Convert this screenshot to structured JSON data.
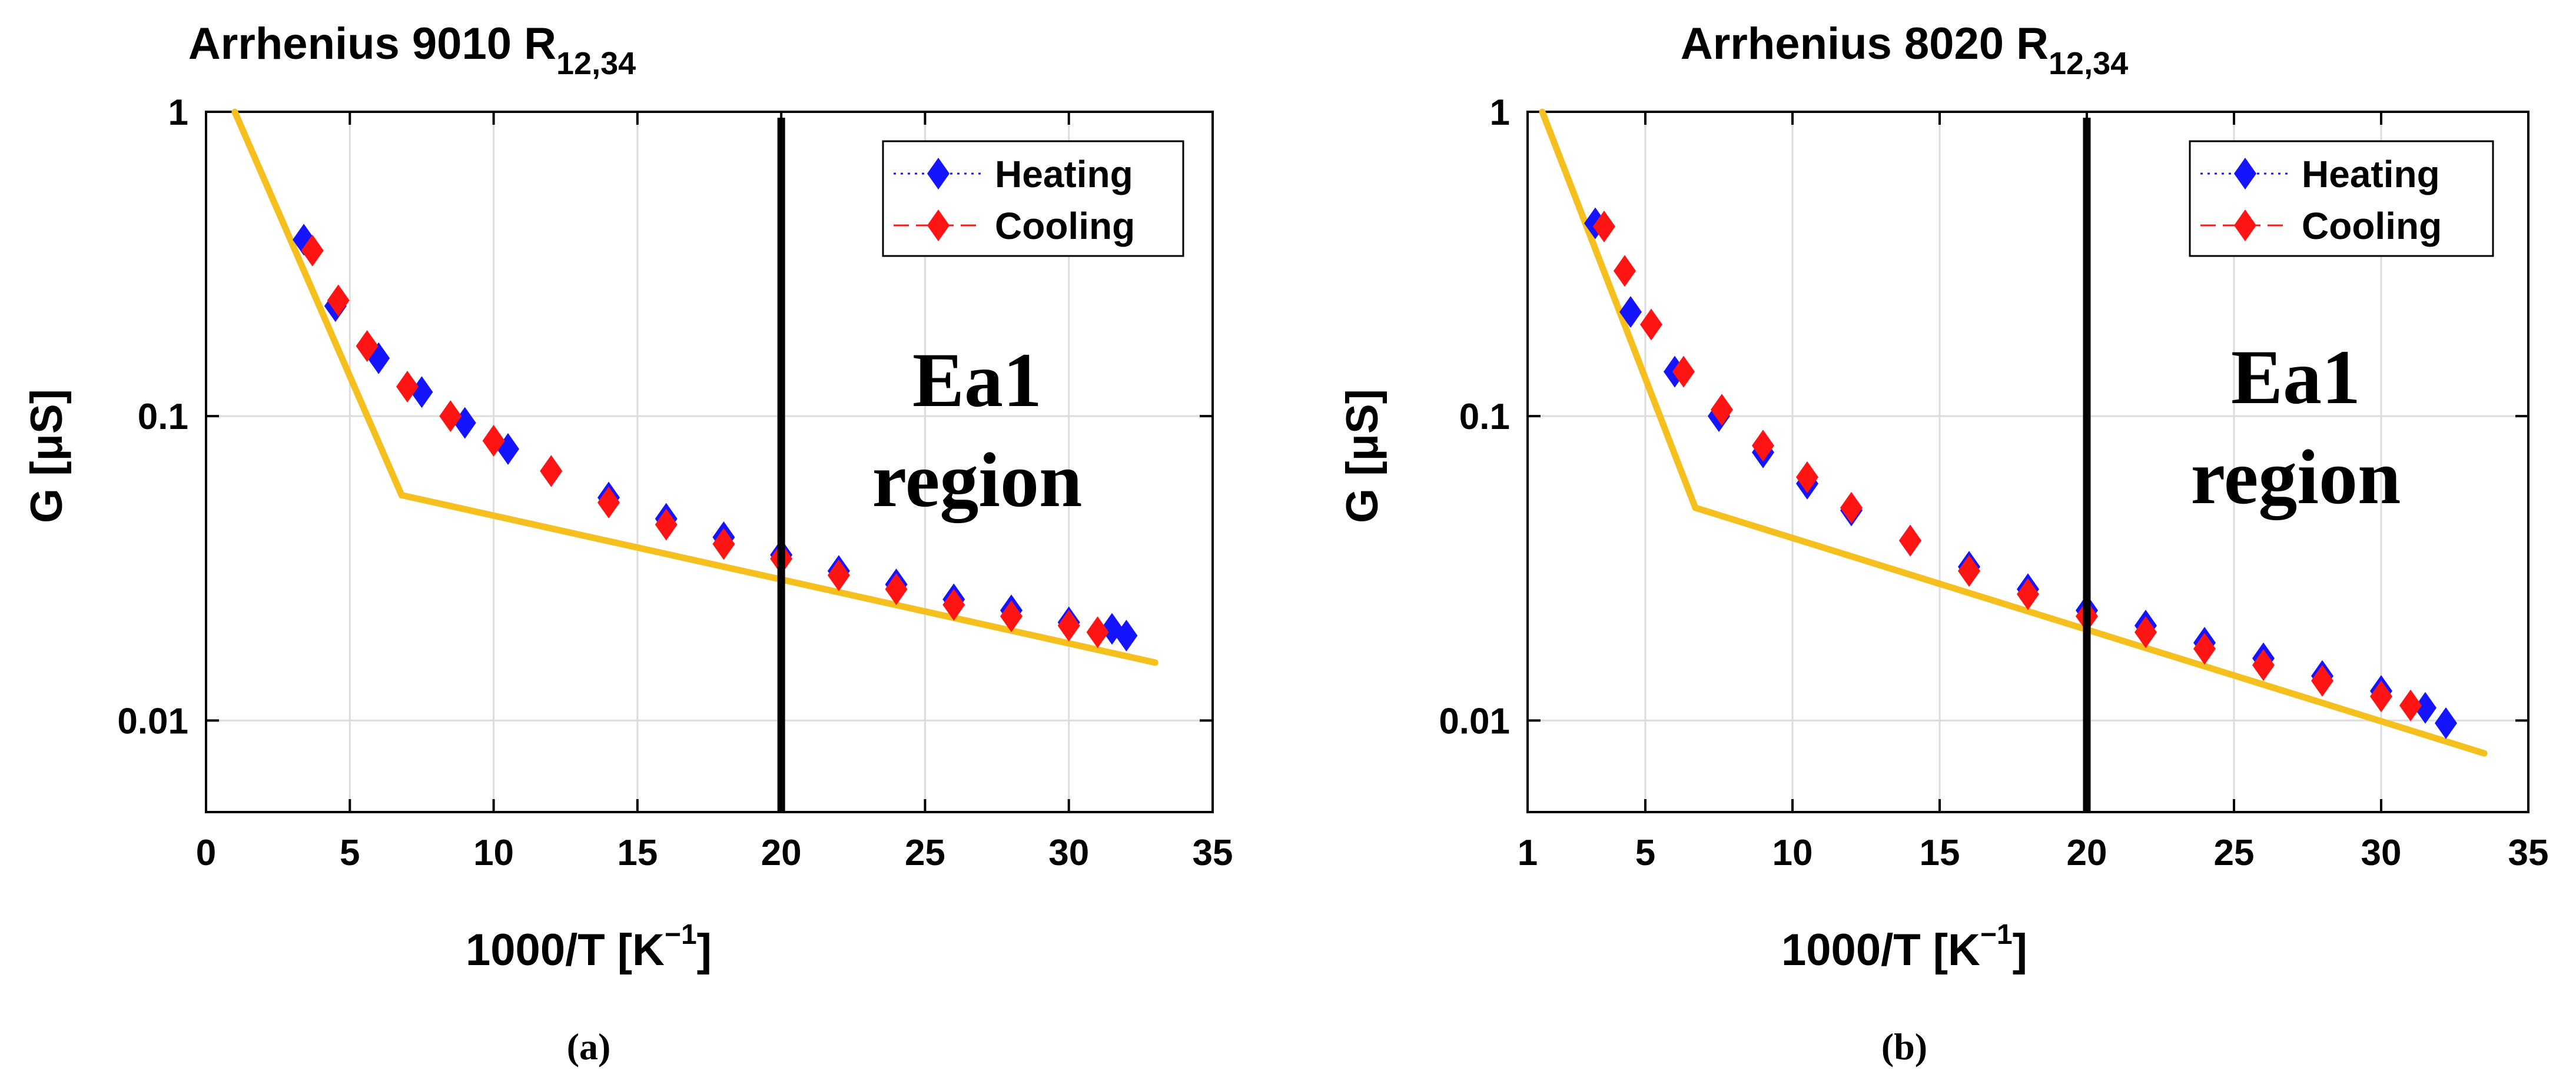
{
  "colors": {
    "heating": "#1414ff",
    "cooling": "#ff1414",
    "fit": "#f5bf1e",
    "marker": "#000000",
    "grid": "#dcdcdc"
  },
  "chart_data": [
    {
      "id": "a",
      "type": "scatter",
      "y_scale": "log",
      "title": "Arrhenius 9010 R",
      "title_sub": "12,34",
      "xlabel": "1000/T [K",
      "xlabel_sup": "−1",
      "xlabel_end": "]",
      "ylabel": "G  [μS]",
      "xlim": [
        0,
        35
      ],
      "ylim": [
        0.005,
        1
      ],
      "x_ticks": [
        0,
        5,
        10,
        15,
        20,
        25,
        30,
        35
      ],
      "x_tick_labels": [
        "0",
        "5",
        "10",
        "15",
        "20",
        "25",
        "30",
        "35"
      ],
      "y_ticks": [
        0.01,
        0.1,
        1
      ],
      "y_tick_labels": [
        "0.01",
        "0.1",
        "1"
      ],
      "legend": {
        "position": "top-right",
        "entries": [
          "Heating",
          "Cooling"
        ]
      },
      "series": [
        {
          "name": "Heating",
          "x": [
            3.4,
            4.5,
            6,
            7.5,
            9,
            10.5,
            12,
            14,
            16,
            18,
            20,
            22,
            24,
            26,
            28,
            30,
            31.5,
            32
          ],
          "y": [
            0.38,
            0.23,
            0.155,
            0.12,
            0.095,
            0.078,
            0.066,
            0.054,
            0.046,
            0.04,
            0.035,
            0.031,
            0.028,
            0.025,
            0.023,
            0.021,
            0.02,
            0.019
          ]
        },
        {
          "name": "Cooling",
          "x": [
            3.7,
            4.6,
            5.6,
            7,
            8.5,
            10,
            12,
            14,
            16,
            18,
            20,
            22,
            24,
            26,
            28,
            30,
            31
          ],
          "y": [
            0.35,
            0.24,
            0.17,
            0.125,
            0.1,
            0.083,
            0.066,
            0.052,
            0.044,
            0.038,
            0.034,
            0.03,
            0.027,
            0.024,
            0.022,
            0.0205,
            0.0195
          ]
        }
      ],
      "fit_lines": [
        {
          "x": [
            1,
            6.8
          ],
          "y": [
            1,
            0.055
          ]
        },
        {
          "x": [
            6.8,
            33
          ],
          "y": [
            0.055,
            0.0155
          ]
        }
      ],
      "vline_x": 20,
      "annotation": [
        "Ea1",
        "region"
      ],
      "caption": "(a)"
    },
    {
      "id": "b",
      "type": "scatter",
      "y_scale": "log",
      "title": "Arrhenius 8020 R",
      "title_sub": "12,34",
      "xlabel": "1000/T [K",
      "xlabel_sup": "−1",
      "xlabel_end": "]",
      "ylabel": "G  [μS]",
      "xlim": [
        1,
        35
      ],
      "ylim": [
        0.005,
        1
      ],
      "x_ticks": [
        1,
        5,
        10,
        15,
        20,
        25,
        30,
        35
      ],
      "x_tick_labels": [
        "1",
        "5",
        "10",
        "15",
        "20",
        "25",
        "30",
        "35"
      ],
      "y_ticks": [
        0.01,
        0.1,
        1
      ],
      "y_tick_labels": [
        "0.01",
        "0.1",
        "1"
      ],
      "legend": {
        "position": "top-right",
        "entries": [
          "Heating",
          "Cooling"
        ]
      },
      "series": [
        {
          "name": "Heating",
          "x": [
            3.3,
            4.5,
            6,
            7.5,
            9,
            10.5,
            12,
            14,
            16,
            18,
            20,
            22,
            24,
            26,
            28,
            30,
            31.5,
            32.2
          ],
          "y": [
            0.43,
            0.22,
            0.14,
            0.1,
            0.076,
            0.06,
            0.049,
            0.039,
            0.032,
            0.027,
            0.023,
            0.0205,
            0.018,
            0.016,
            0.014,
            0.0125,
            0.011,
            0.0098
          ]
        },
        {
          "name": "Cooling",
          "x": [
            3.6,
            4.3,
            5.2,
            6.3,
            7.6,
            9,
            10.5,
            12,
            14,
            16,
            18,
            20,
            22,
            24,
            26,
            28,
            30,
            31
          ],
          "y": [
            0.42,
            0.3,
            0.2,
            0.14,
            0.105,
            0.08,
            0.063,
            0.05,
            0.039,
            0.031,
            0.026,
            0.022,
            0.0195,
            0.0172,
            0.0152,
            0.0135,
            0.012,
            0.0112
          ]
        }
      ],
      "fit_lines": [
        {
          "x": [
            1.5,
            6.7
          ],
          "y": [
            1,
            0.05
          ]
        },
        {
          "x": [
            6.7,
            33.5
          ],
          "y": [
            0.05,
            0.0078
          ]
        }
      ],
      "vline_x": 20,
      "annotation": [
        "Ea1",
        "region"
      ],
      "caption": "(b)"
    }
  ]
}
